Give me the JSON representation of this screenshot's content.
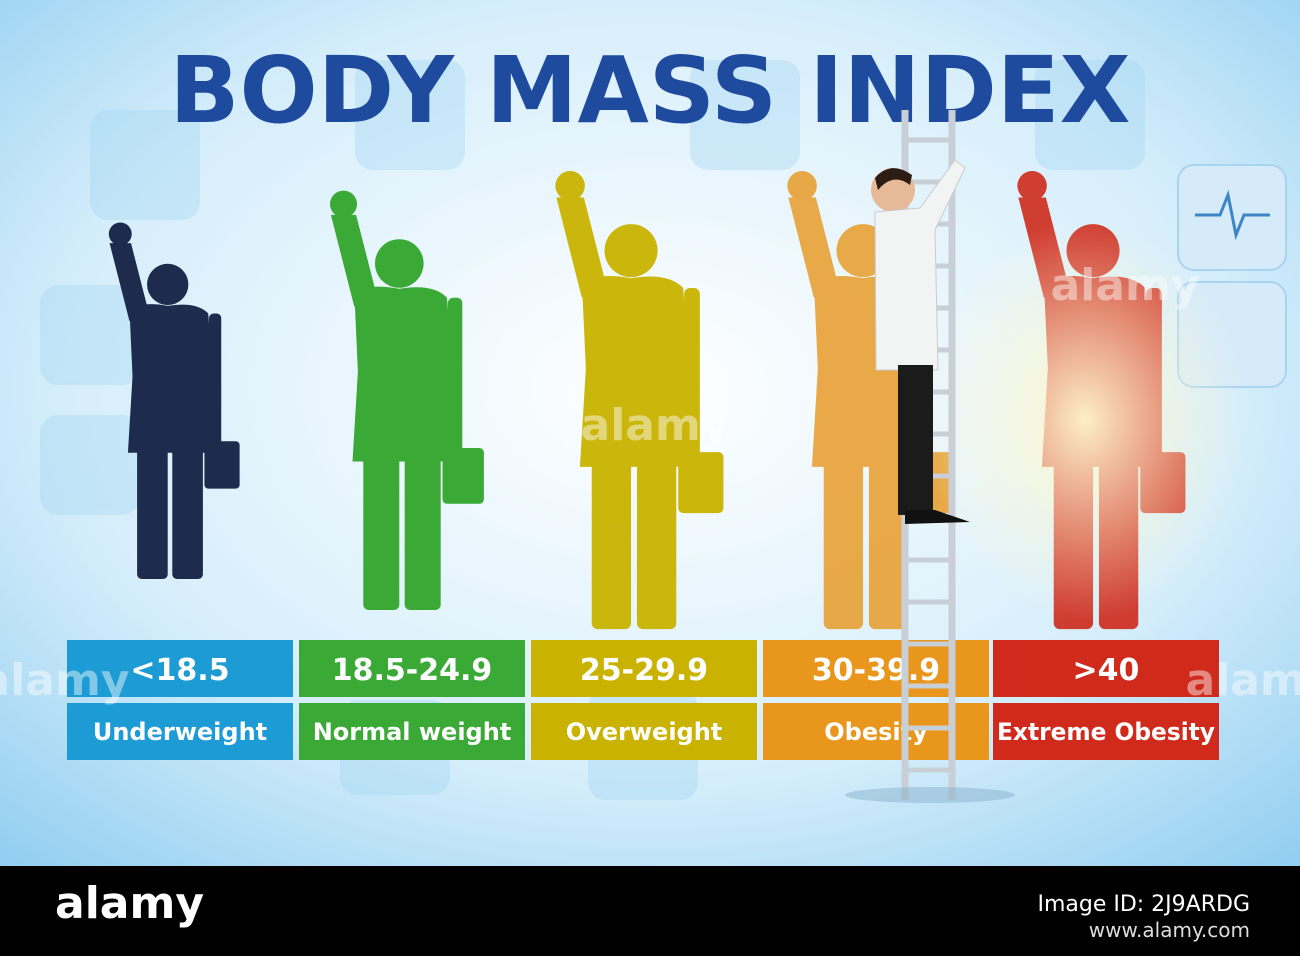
{
  "title": "BODY MASS INDEX",
  "categories": [
    {
      "range": "<18.5",
      "label": "Underweight",
      "color": "#1c9bd4"
    },
    {
      "range": "18.5-24.9",
      "label": "Normal weight",
      "color": "#3aa935"
    },
    {
      "range": "25-29.9",
      "label": "Overweight",
      "color": "#c9b300"
    },
    {
      "range": "30-39.9",
      "label": "Obesity",
      "color": "#e8961c"
    },
    {
      "range": ">40",
      "label": "Extreme Obesity",
      "color": "#cf2a1c"
    }
  ],
  "watermark": "alamy",
  "footer": {
    "logo": "alamy",
    "image_id": "Image ID: 2J9ARDG",
    "url": "www.alamy.com"
  }
}
